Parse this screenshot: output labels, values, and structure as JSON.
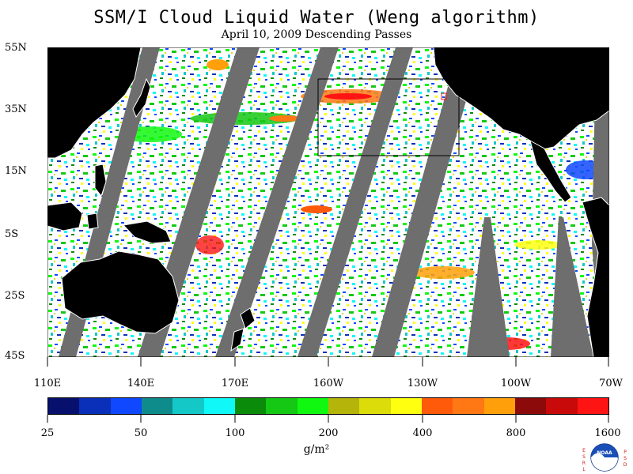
{
  "header": {
    "title": "SSM/I Cloud Liquid Water (Weng algorithm)",
    "subtitle": "April 10, 2009  Descending Passes"
  },
  "map": {
    "y_labels": [
      "55N",
      "35N",
      "15N",
      "5S",
      "25S",
      "45S"
    ],
    "x_labels": [
      "110E",
      "140E",
      "170E",
      "160W",
      "130W",
      "100W",
      "70W"
    ],
    "colors": {
      "land": "#000000",
      "swath_gap": "#6e6e6e",
      "ocean_no_cloud": "#ffffff",
      "coastline": "#ffffff"
    }
  },
  "colorbar": {
    "colors": [
      "#08106e",
      "#0a2fb8",
      "#1048ff",
      "#0e8c8c",
      "#14c8c8",
      "#10f8f8",
      "#0a8c0a",
      "#14c814",
      "#10f810",
      "#b4b40a",
      "#dcdc0a",
      "#ffff10",
      "#ff5a0a",
      "#ff7814",
      "#ffa00a",
      "#8c0a0a",
      "#c80a0a",
      "#ff1414"
    ],
    "labels": [
      "25",
      "50",
      "100",
      "200",
      "400",
      "800",
      "1600"
    ],
    "units": "g/m²"
  },
  "logo": {
    "letters_left": "ESRL",
    "letters_right": "PSD",
    "badge_text": "NOAA"
  }
}
